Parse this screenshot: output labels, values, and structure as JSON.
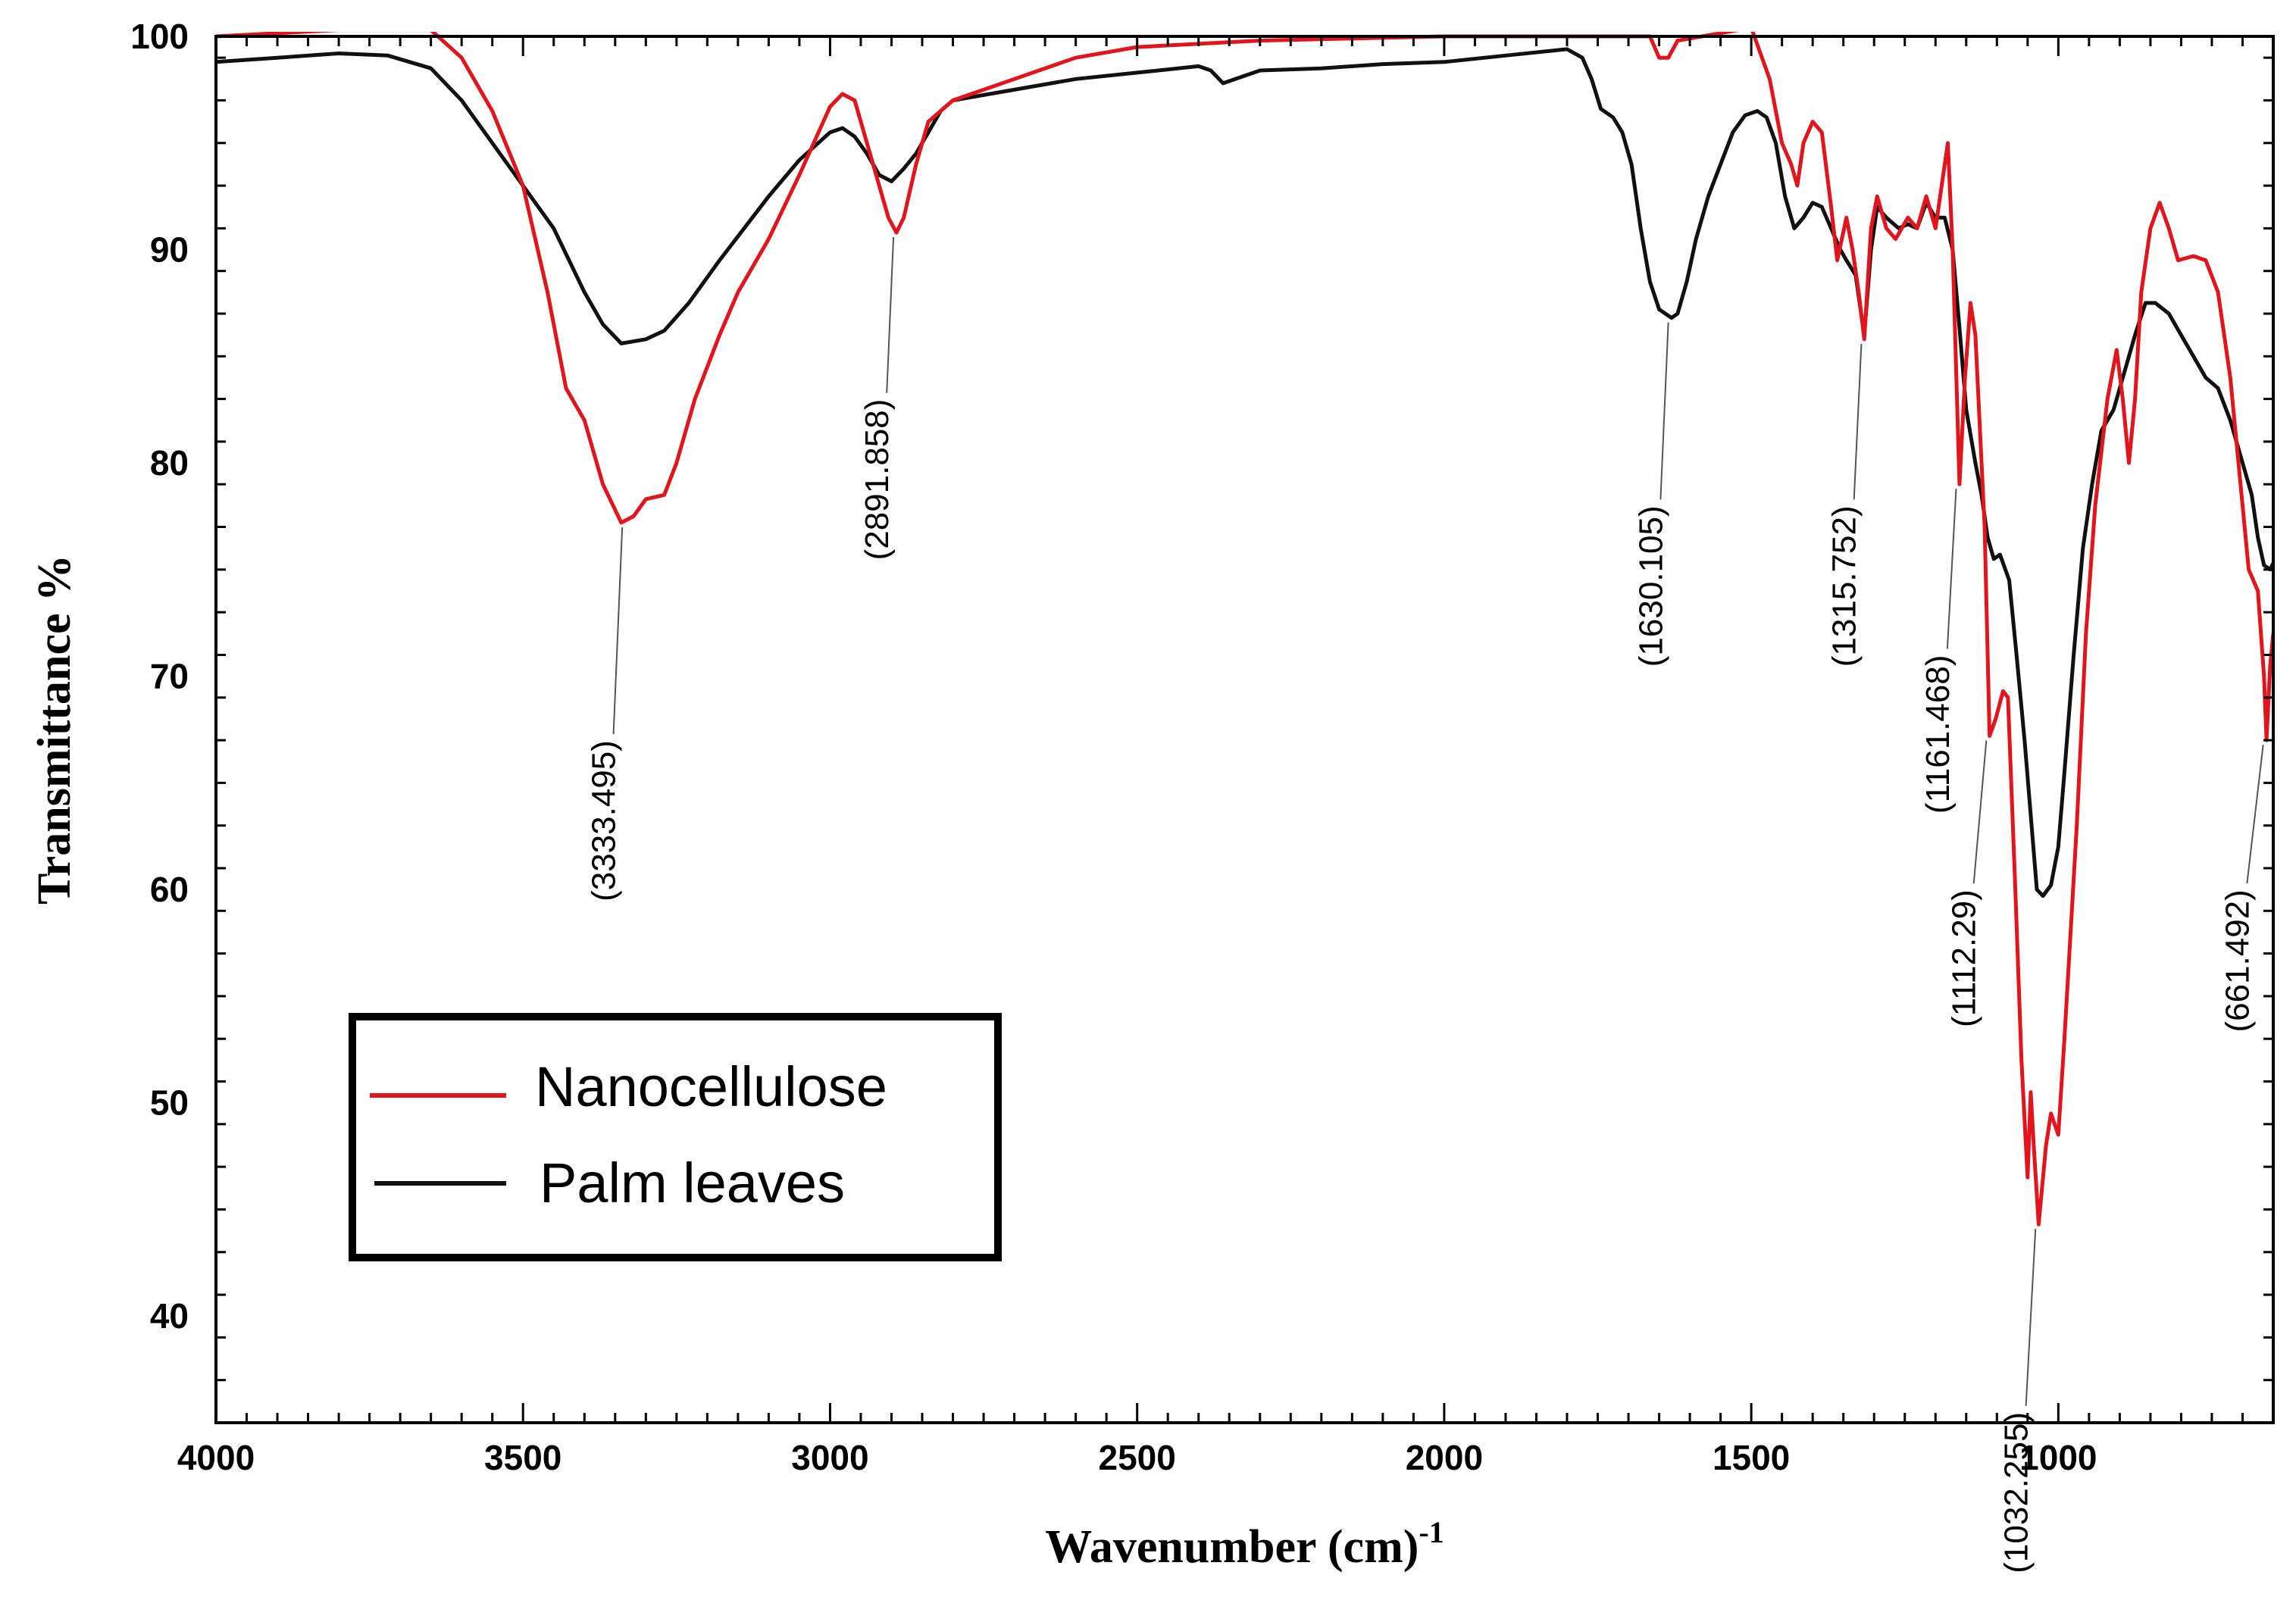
{
  "chart_data": {
    "type": "line",
    "title": "",
    "xlabel": "Wavenumber (cm)",
    "xlabel_superscript": "-1",
    "ylabel": "Transmittance %",
    "xlim": [
      4000,
      650
    ],
    "ylim": [
      35,
      100
    ],
    "x_ticks": [
      4000,
      3500,
      3000,
      2500,
      2000,
      1500,
      1000
    ],
    "y_ticks": [
      40,
      50,
      60,
      70,
      80,
      90,
      100
    ],
    "legend_position": "lower-left",
    "series": [
      {
        "name": "Nanocellulose",
        "color": "#e3141b",
        "points": [
          [
            4000,
            100
          ],
          [
            3800,
            100.3
          ],
          [
            3650,
            100.3
          ],
          [
            3600,
            99
          ],
          [
            3550,
            96.5
          ],
          [
            3500,
            93
          ],
          [
            3460,
            88
          ],
          [
            3430,
            83.5
          ],
          [
            3400,
            82
          ],
          [
            3370,
            79
          ],
          [
            3340,
            77.2
          ],
          [
            3320,
            77.5
          ],
          [
            3300,
            78.3
          ],
          [
            3270,
            78.5
          ],
          [
            3250,
            80
          ],
          [
            3220,
            83
          ],
          [
            3180,
            86
          ],
          [
            3150,
            88
          ],
          [
            3100,
            90.5
          ],
          [
            3050,
            93.5
          ],
          [
            3000,
            96.7
          ],
          [
            2980,
            97.3
          ],
          [
            2960,
            97
          ],
          [
            2940,
            95
          ],
          [
            2920,
            93
          ],
          [
            2905,
            91.5
          ],
          [
            2892,
            90.8
          ],
          [
            2880,
            91.5
          ],
          [
            2860,
            94
          ],
          [
            2840,
            96
          ],
          [
            2800,
            97
          ],
          [
            2700,
            98
          ],
          [
            2600,
            99
          ],
          [
            2500,
            99.5
          ],
          [
            2300,
            99.8
          ],
          [
            2000,
            100
          ],
          [
            1800,
            100
          ],
          [
            1700,
            100
          ],
          [
            1665,
            100
          ],
          [
            1650,
            99
          ],
          [
            1635,
            99
          ],
          [
            1620,
            99.8
          ],
          [
            1500,
            100.4
          ],
          [
            1470,
            98
          ],
          [
            1450,
            95
          ],
          [
            1435,
            94
          ],
          [
            1425,
            93
          ],
          [
            1415,
            95
          ],
          [
            1400,
            96
          ],
          [
            1385,
            95.5
          ],
          [
            1370,
            92
          ],
          [
            1360,
            89.5
          ],
          [
            1345,
            91.5
          ],
          [
            1335,
            90
          ],
          [
            1325,
            88
          ],
          [
            1316,
            85.8
          ],
          [
            1305,
            91
          ],
          [
            1295,
            92.5
          ],
          [
            1280,
            91
          ],
          [
            1265,
            90.5
          ],
          [
            1245,
            91.5
          ],
          [
            1230,
            91
          ],
          [
            1215,
            92.5
          ],
          [
            1200,
            91
          ],
          [
            1190,
            93
          ],
          [
            1180,
            95
          ],
          [
            1172,
            90
          ],
          [
            1165,
            83
          ],
          [
            1161,
            79
          ],
          [
            1152,
            84
          ],
          [
            1143,
            87.5
          ],
          [
            1135,
            86
          ],
          [
            1120,
            77
          ],
          [
            1112,
            67.2
          ],
          [
            1102,
            68
          ],
          [
            1090,
            69.3
          ],
          [
            1082,
            69
          ],
          [
            1070,
            60
          ],
          [
            1060,
            52
          ],
          [
            1050,
            46.5
          ],
          [
            1045,
            50.5
          ],
          [
            1040,
            48
          ],
          [
            1032,
            44.3
          ],
          [
            1020,
            48
          ],
          [
            1012,
            49.5
          ],
          [
            1000,
            48.5
          ],
          [
            990,
            53
          ],
          [
            970,
            63
          ],
          [
            955,
            72
          ],
          [
            940,
            78
          ],
          [
            920,
            83
          ],
          [
            905,
            85.3
          ],
          [
            895,
            83
          ],
          [
            885,
            80
          ],
          [
            875,
            83
          ],
          [
            865,
            88
          ],
          [
            850,
            91
          ],
          [
            835,
            92.2
          ],
          [
            820,
            91
          ],
          [
            805,
            89.5
          ],
          [
            780,
            89.7
          ],
          [
            760,
            89.5
          ],
          [
            740,
            88
          ],
          [
            720,
            84
          ],
          [
            700,
            78
          ],
          [
            690,
            75
          ],
          [
            675,
            74
          ],
          [
            665,
            70
          ],
          [
            661,
            67
          ],
          [
            655,
            70.5
          ],
          [
            650,
            72
          ]
        ]
      },
      {
        "name": "Palm leaves",
        "color": "#111111",
        "points": [
          [
            4000,
            98.8
          ],
          [
            3900,
            99
          ],
          [
            3800,
            99.2
          ],
          [
            3720,
            99.1
          ],
          [
            3650,
            98.5
          ],
          [
            3600,
            97
          ],
          [
            3550,
            95
          ],
          [
            3500,
            93
          ],
          [
            3450,
            91
          ],
          [
            3400,
            88
          ],
          [
            3370,
            86.5
          ],
          [
            3340,
            85.6
          ],
          [
            3300,
            85.8
          ],
          [
            3270,
            86.2
          ],
          [
            3230,
            87.5
          ],
          [
            3180,
            89.5
          ],
          [
            3100,
            92.5
          ],
          [
            3050,
            94.2
          ],
          [
            3000,
            95.5
          ],
          [
            2980,
            95.7
          ],
          [
            2960,
            95.3
          ],
          [
            2940,
            94.5
          ],
          [
            2920,
            93.5
          ],
          [
            2900,
            93.2
          ],
          [
            2880,
            93.8
          ],
          [
            2860,
            94.5
          ],
          [
            2840,
            95.5
          ],
          [
            2820,
            96.5
          ],
          [
            2800,
            97
          ],
          [
            2700,
            97.5
          ],
          [
            2600,
            98
          ],
          [
            2500,
            98.3
          ],
          [
            2400,
            98.6
          ],
          [
            2380,
            98.4
          ],
          [
            2360,
            97.8
          ],
          [
            2340,
            98
          ],
          [
            2300,
            98.4
          ],
          [
            2200,
            98.5
          ],
          [
            2100,
            98.7
          ],
          [
            2000,
            98.8
          ],
          [
            1900,
            99.1
          ],
          [
            1800,
            99.4
          ],
          [
            1775,
            99
          ],
          [
            1760,
            98
          ],
          [
            1745,
            96.6
          ],
          [
            1725,
            96.2
          ],
          [
            1710,
            95.5
          ],
          [
            1695,
            94
          ],
          [
            1680,
            91
          ],
          [
            1665,
            88.5
          ],
          [
            1650,
            87.2
          ],
          [
            1630,
            86.8
          ],
          [
            1620,
            87
          ],
          [
            1605,
            88.5
          ],
          [
            1590,
            90.5
          ],
          [
            1570,
            92.5
          ],
          [
            1550,
            94
          ],
          [
            1530,
            95.5
          ],
          [
            1510,
            96.3
          ],
          [
            1490,
            96.5
          ],
          [
            1475,
            96.2
          ],
          [
            1460,
            95
          ],
          [
            1445,
            92.5
          ],
          [
            1430,
            91
          ],
          [
            1415,
            91.5
          ],
          [
            1400,
            92.2
          ],
          [
            1385,
            92
          ],
          [
            1370,
            91
          ],
          [
            1355,
            90
          ],
          [
            1345,
            89.5
          ],
          [
            1330,
            88.8
          ],
          [
            1316,
            86
          ],
          [
            1305,
            90
          ],
          [
            1295,
            92
          ],
          [
            1280,
            91.5
          ],
          [
            1260,
            91
          ],
          [
            1245,
            91.2
          ],
          [
            1230,
            91
          ],
          [
            1215,
            92.2
          ],
          [
            1200,
            91.5
          ],
          [
            1185,
            91.5
          ],
          [
            1172,
            90
          ],
          [
            1160,
            86
          ],
          [
            1150,
            82.5
          ],
          [
            1135,
            80
          ],
          [
            1125,
            78.5
          ],
          [
            1115,
            76.5
          ],
          [
            1105,
            75.5
          ],
          [
            1095,
            75.7
          ],
          [
            1080,
            74.5
          ],
          [
            1068,
            71
          ],
          [
            1055,
            67
          ],
          [
            1045,
            63.5
          ],
          [
            1035,
            60
          ],
          [
            1025,
            59.7
          ],
          [
            1012,
            60.2
          ],
          [
            1000,
            62
          ],
          [
            990,
            65.5
          ],
          [
            975,
            71
          ],
          [
            960,
            76
          ],
          [
            945,
            79
          ],
          [
            930,
            81.5
          ],
          [
            910,
            82.5
          ],
          [
            890,
            84.5
          ],
          [
            875,
            86
          ],
          [
            858,
            87.5
          ],
          [
            842,
            87.5
          ],
          [
            820,
            87
          ],
          [
            800,
            86
          ],
          [
            780,
            85
          ],
          [
            760,
            84
          ],
          [
            740,
            83.5
          ],
          [
            720,
            82
          ],
          [
            700,
            80
          ],
          [
            685,
            78.5
          ],
          [
            675,
            76.5
          ],
          [
            665,
            75.2
          ],
          [
            655,
            75
          ],
          [
            650,
            75.3
          ]
        ]
      }
    ],
    "annotations": [
      {
        "label": "(3333.495)",
        "x": 3333.495,
        "y": 77.2,
        "text_x": 3370,
        "text_y": 67
      },
      {
        "label": "(2891.858)",
        "x": 2891.858,
        "y": 90.8,
        "text_x": 2925,
        "text_y": 83
      },
      {
        "label": "(1630.105)",
        "x": 1630.105,
        "y": 86.8,
        "text_x": 1665,
        "text_y": 78
      },
      {
        "label": "(1315.752)",
        "x": 1315.752,
        "y": 85.8,
        "text_x": 1350,
        "text_y": 78
      },
      {
        "label": "(1161.468)",
        "x": 1161.468,
        "y": 79,
        "text_x": 1198,
        "text_y": 71
      },
      {
        "label": "(1112.29)",
        "x": 1112.29,
        "y": 67.2,
        "text_x": 1155,
        "text_y": 60
      },
      {
        "label": "(1032.255)",
        "x": 1032.255,
        "y": 44.3,
        "text_x": 1070,
        "text_y": 35.5
      },
      {
        "label": "(661.492)",
        "x": 661.492,
        "y": 67,
        "text_x": 710,
        "text_y": 60
      }
    ]
  }
}
